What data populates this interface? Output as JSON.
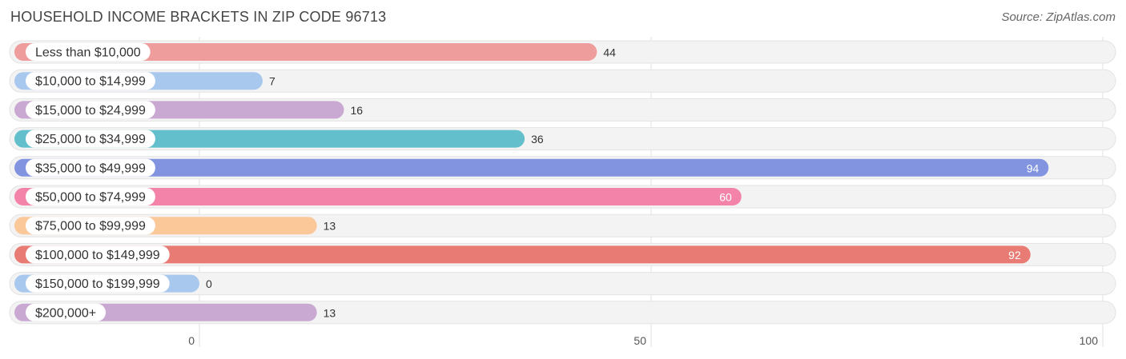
{
  "header": {
    "title": "HOUSEHOLD INCOME BRACKETS IN ZIP CODE 96713",
    "source": "Source: ZipAtlas.com"
  },
  "chart_data": {
    "type": "bar",
    "orientation": "horizontal",
    "title": "HOUSEHOLD INCOME BRACKETS IN ZIP CODE 96713",
    "xlabel": "",
    "ylabel": "",
    "xlim": [
      0,
      100
    ],
    "ticks": [
      0,
      50,
      100
    ],
    "grid": true,
    "categories": [
      "Less than $10,000",
      "$10,000 to $14,999",
      "$15,000 to $24,999",
      "$25,000 to $34,999",
      "$35,000 to $49,999",
      "$50,000 to $74,999",
      "$75,000 to $99,999",
      "$100,000 to $149,999",
      "$150,000 to $199,999",
      "$200,000+"
    ],
    "values": [
      44,
      7,
      16,
      36,
      94,
      60,
      13,
      92,
      0,
      13
    ],
    "colors": [
      "#ee9c9c",
      "#a9c8ee",
      "#c9a8d2",
      "#62bfcb",
      "#8294e0",
      "#f383a8",
      "#fbc89a",
      "#e87b74",
      "#a9c8ee",
      "#c9a8d2"
    ]
  }
}
